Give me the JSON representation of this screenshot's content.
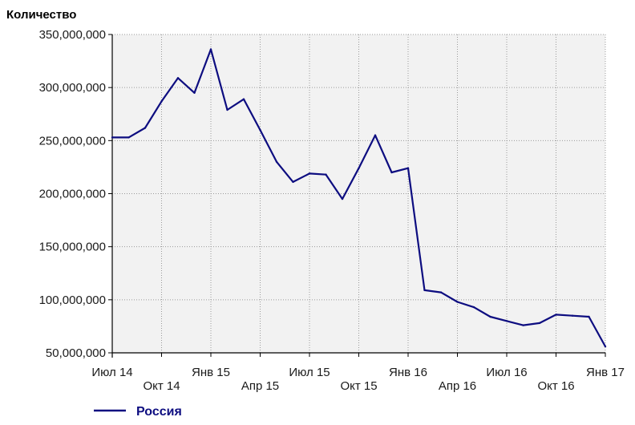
{
  "chart_data": {
    "type": "line",
    "title": "",
    "xlabel": "",
    "ylabel": "Количество",
    "ylim": [
      50000000,
      350000000
    ],
    "yticks": [
      350000000,
      300000000,
      250000000,
      200000000,
      150000000,
      100000000,
      50000000
    ],
    "ytick_labels": [
      "350,000,000",
      "300,000,000",
      "250,000,000",
      "200,000,000",
      "150,000,000",
      "100,000,000",
      "50,000,000"
    ],
    "xticks": [
      {
        "label": "Июл 14",
        "date": "2014-07",
        "row": 1
      },
      {
        "label": "Окт 14",
        "date": "2014-10",
        "row": 2
      },
      {
        "label": "Янв 15",
        "date": "2015-01",
        "row": 1
      },
      {
        "label": "Апр 15",
        "date": "2015-04",
        "row": 2
      },
      {
        "label": "Июл 15",
        "date": "2015-07",
        "row": 1
      },
      {
        "label": "Окт 15",
        "date": "2015-10",
        "row": 2
      },
      {
        "label": "Янв 16",
        "date": "2016-01",
        "row": 1
      },
      {
        "label": "Апр 16",
        "date": "2016-04",
        "row": 2
      },
      {
        "label": "Июл 16",
        "date": "2016-07",
        "row": 1
      },
      {
        "label": "Окт 16",
        "date": "2016-10",
        "row": 2
      },
      {
        "label": "Янв 17",
        "date": "2017-01",
        "row": 1
      }
    ],
    "grid": true,
    "legend_position": "bottom-left",
    "series": [
      {
        "name": "Россия",
        "color": "#0d0d80",
        "x": [
          "2014-07",
          "2014-08",
          "2014-09",
          "2014-10",
          "2014-11",
          "2014-12",
          "2015-01",
          "2015-02",
          "2015-03",
          "2015-04",
          "2015-05",
          "2015-06",
          "2015-07",
          "2015-08",
          "2015-09",
          "2015-10",
          "2015-11",
          "2015-12",
          "2016-01",
          "2016-02",
          "2016-03",
          "2016-04",
          "2016-05",
          "2016-06",
          "2016-07",
          "2016-08",
          "2016-09",
          "2016-10",
          "2016-11",
          "2016-12",
          "2017-01"
        ],
        "values": [
          253000000,
          253000000,
          262000000,
          287000000,
          309000000,
          295000000,
          336000000,
          279000000,
          289000000,
          260000000,
          230000000,
          211000000,
          219000000,
          218000000,
          195000000,
          224000000,
          255000000,
          220000000,
          224000000,
          109000000,
          107000000,
          98000000,
          93000000,
          84000000,
          80000000,
          76000000,
          78000000,
          86000000,
          85000000,
          84000000,
          56000000
        ]
      }
    ]
  }
}
